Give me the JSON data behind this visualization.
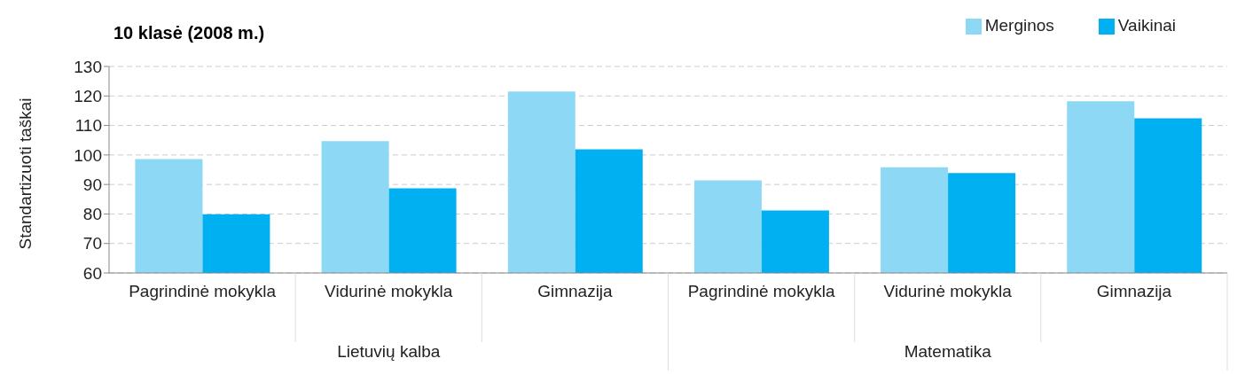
{
  "chart_data": {
    "type": "bar",
    "title": "10 klasė (2008 m.)",
    "ylabel": "Standartizuoti taškai",
    "categories": [
      "Pagrindinė mokykla",
      "Vidurinė mokykla",
      "Gimnazija",
      "Pagrindinė mokykla",
      "Vidurinė mokykla",
      "Gimnazija"
    ],
    "series": [
      {
        "name": "Merginos",
        "color": "#8dd8f5",
        "values": [
          98.6,
          104.7,
          121.5,
          91.4,
          95.8,
          118.2
        ]
      },
      {
        "name": "Vaikinai",
        "color": "#00b0f0",
        "values": [
          79.9,
          88.7,
          101.9,
          81.2,
          93.9,
          112.4
        ]
      }
    ],
    "annotations": [
      "Lietuvių kalba",
      "Matematika"
    ],
    "ylim": [
      60,
      130
    ],
    "yticks": [
      60,
      70,
      80,
      90,
      100,
      110,
      120,
      130
    ],
    "grid": "y",
    "legend": "top right"
  }
}
